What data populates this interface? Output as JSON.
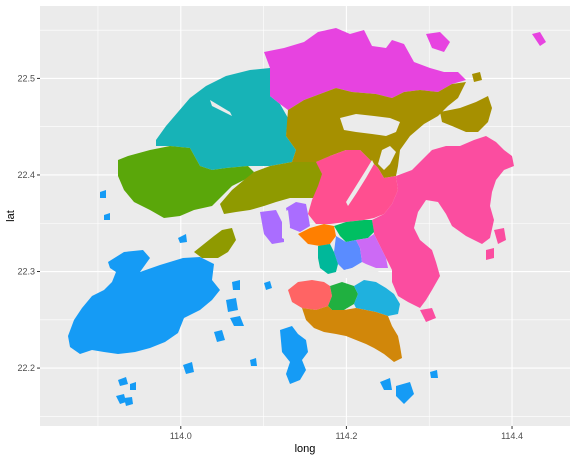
{
  "chart_data": {
    "type": "map",
    "xlabel": "long",
    "ylabel": "lat",
    "xlim": [
      113.83,
      114.47
    ],
    "ylim": [
      22.14,
      22.575
    ],
    "x_ticks": [
      114.0,
      114.2,
      114.4
    ],
    "x_tick_labels": [
      "114.0",
      "114.2",
      "114.4"
    ],
    "y_ticks": [
      22.2,
      22.3,
      22.4,
      22.5
    ],
    "y_tick_labels": [
      "22.2",
      "22.3",
      "22.4",
      "22.5"
    ],
    "grid": true,
    "legend": "none",
    "panel_background": "#ebebeb",
    "gridline_color": "#ffffff",
    "regions": [
      {
        "id": "north",
        "fill": "#e743e0"
      },
      {
        "id": "tai-po",
        "fill": "#a69000"
      },
      {
        "id": "sai-kung",
        "fill": "#fb4da0"
      },
      {
        "id": "sha-tin",
        "fill": "#ff4f90"
      },
      {
        "id": "yuen-long",
        "fill": "#17b3b7"
      },
      {
        "id": "tuen-mun",
        "fill": "#5aa70a"
      },
      {
        "id": "tsuen-wan",
        "fill": "#8f9a00"
      },
      {
        "id": "kwai-tsing",
        "fill": "#aa6dff"
      },
      {
        "id": "sham-shui-po",
        "fill": "#ff7f00"
      },
      {
        "id": "wong-tai-sin",
        "fill": "#00bf62"
      },
      {
        "id": "kowloon-city",
        "fill": "#5a8cff"
      },
      {
        "id": "yau-tsim-mong",
        "fill": "#00b89a"
      },
      {
        "id": "kwun-tong",
        "fill": "#cc6af5"
      },
      {
        "id": "central-western",
        "fill": "#ff6464"
      },
      {
        "id": "wan-chai",
        "fill": "#20b040"
      },
      {
        "id": "eastern",
        "fill": "#1fb1de"
      },
      {
        "id": "southern",
        "fill": "#d1870a"
      },
      {
        "id": "islands",
        "fill": "#159bf5"
      }
    ]
  }
}
